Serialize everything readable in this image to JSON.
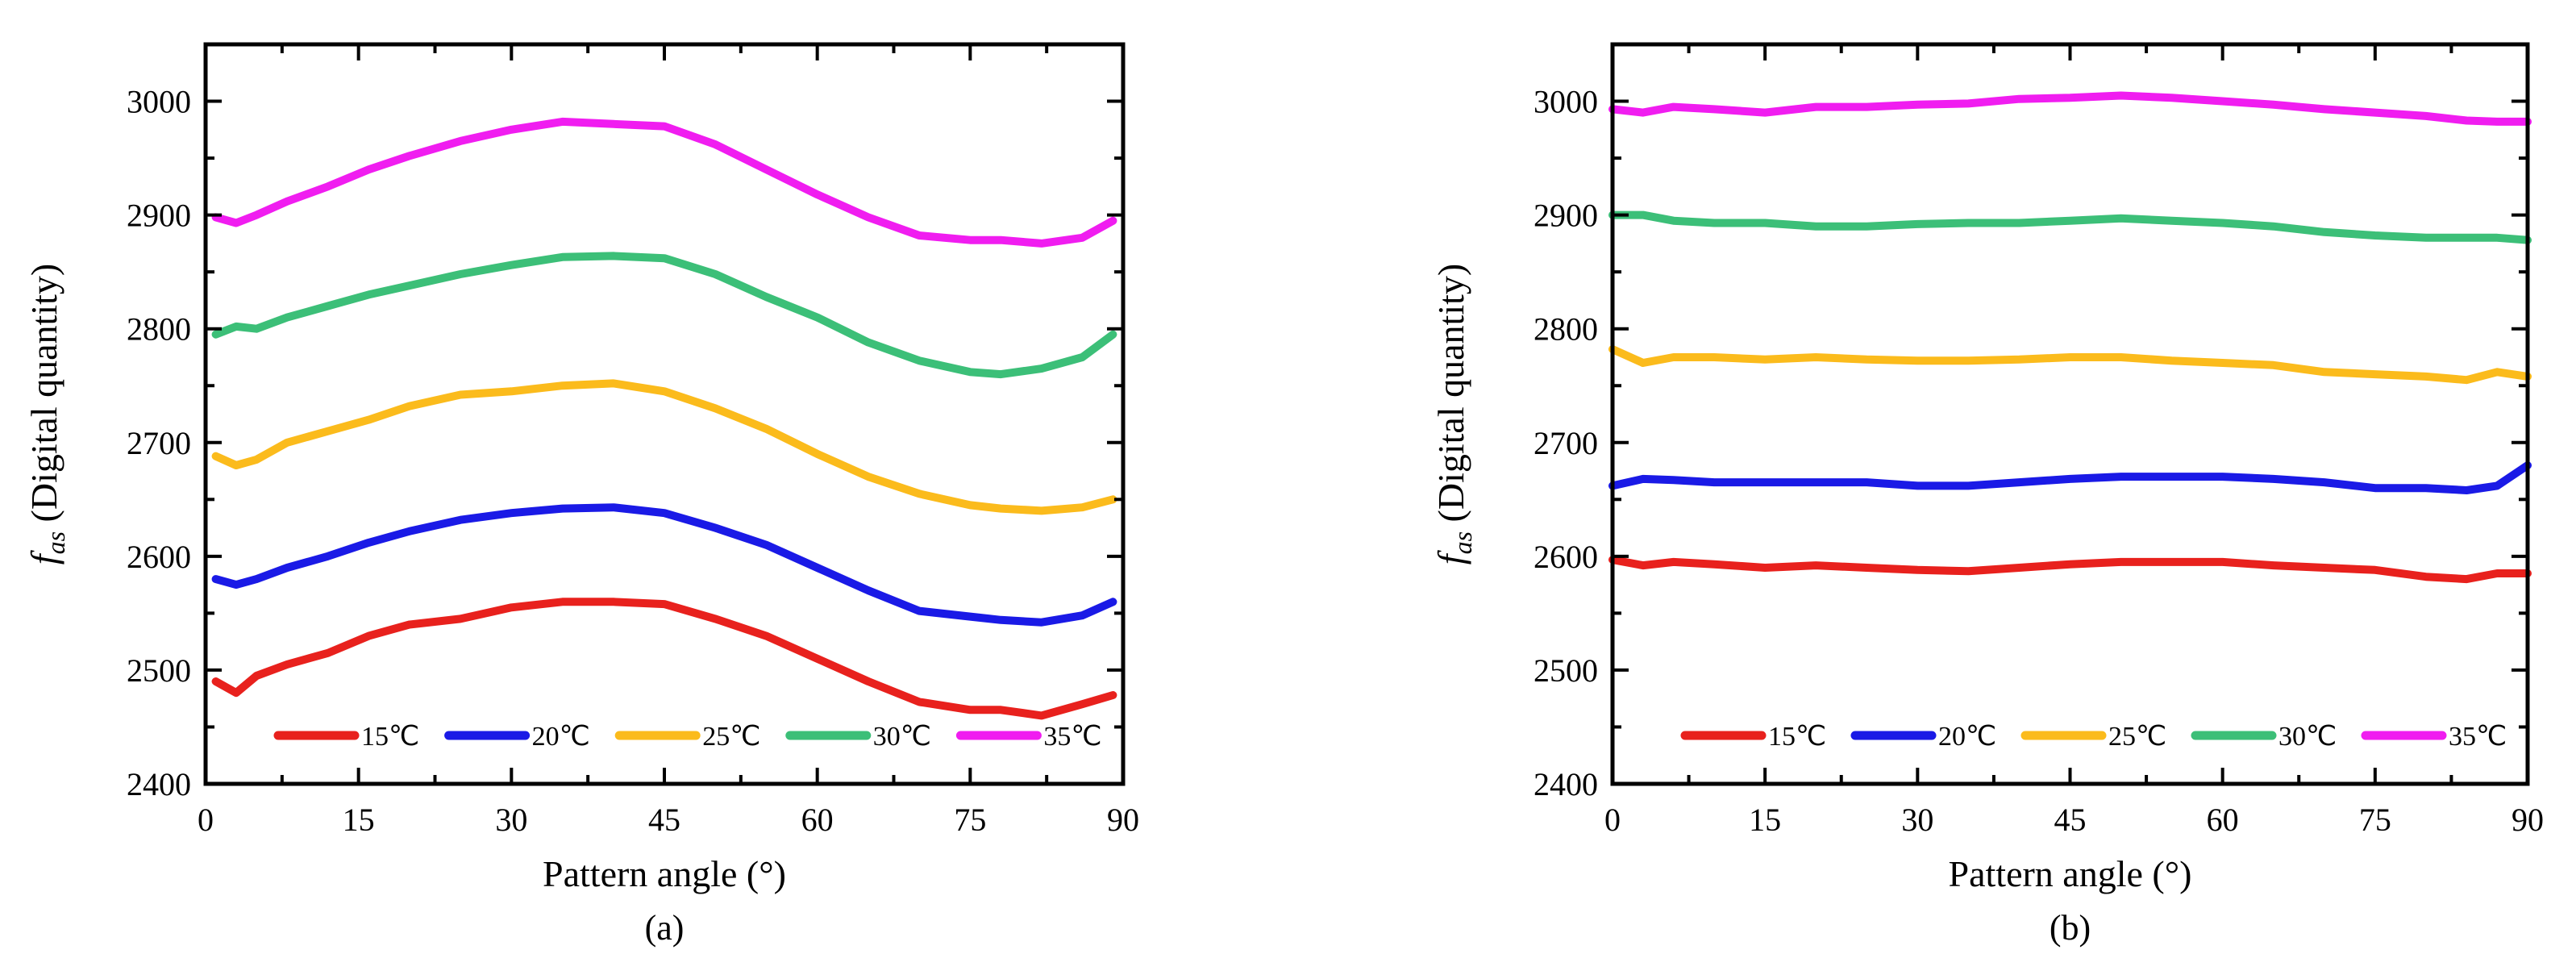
{
  "colors": {
    "15C": "#e8211d",
    "20C": "#1a1ae6",
    "25C": "#fbbb1c",
    "30C": "#3cbf78",
    "35C": "#f01df0"
  },
  "chart_data": [
    {
      "type": "line",
      "caption": "(a)",
      "xlabel": "Pattern angle (°)",
      "ylabel_symbol": "f",
      "ylabel_sub": "as",
      "ylabel_rest": " (Digital quantity)",
      "xlim": [
        0,
        90
      ],
      "ylim": [
        2400,
        3050
      ],
      "xticks": [
        0,
        15,
        30,
        45,
        60,
        75,
        90
      ],
      "yticks": [
        2400,
        2500,
        2600,
        2700,
        2800,
        2900,
        3000
      ],
      "x": [
        1,
        3,
        5,
        8,
        12,
        16,
        20,
        25,
        30,
        35,
        40,
        45,
        50,
        55,
        60,
        65,
        70,
        75,
        78,
        82,
        86,
        89
      ],
      "series": [
        {
          "name": "15℃",
          "color_key": "15C",
          "values": [
            2490,
            2480,
            2495,
            2505,
            2515,
            2530,
            2540,
            2545,
            2555,
            2560,
            2560,
            2558,
            2545,
            2530,
            2510,
            2490,
            2472,
            2465,
            2465,
            2460,
            2470,
            2478
          ]
        },
        {
          "name": "20℃",
          "color_key": "20C",
          "values": [
            2580,
            2575,
            2580,
            2590,
            2600,
            2612,
            2622,
            2632,
            2638,
            2642,
            2643,
            2638,
            2625,
            2610,
            2590,
            2570,
            2552,
            2547,
            2544,
            2542,
            2548,
            2560
          ]
        },
        {
          "name": "25℃",
          "color_key": "25C",
          "values": [
            2688,
            2680,
            2685,
            2700,
            2710,
            2720,
            2732,
            2742,
            2745,
            2750,
            2752,
            2745,
            2730,
            2712,
            2690,
            2670,
            2655,
            2645,
            2642,
            2640,
            2643,
            2650
          ]
        },
        {
          "name": "30℃",
          "color_key": "30C",
          "values": [
            2795,
            2802,
            2800,
            2810,
            2820,
            2830,
            2838,
            2848,
            2856,
            2863,
            2864,
            2862,
            2848,
            2828,
            2810,
            2788,
            2772,
            2762,
            2760,
            2765,
            2775,
            2795
          ]
        },
        {
          "name": "35℃",
          "color_key": "35C",
          "values": [
            2898,
            2893,
            2900,
            2912,
            2925,
            2940,
            2952,
            2965,
            2975,
            2982,
            2980,
            2978,
            2962,
            2940,
            2918,
            2898,
            2882,
            2878,
            2878,
            2875,
            2880,
            2895
          ]
        }
      ]
    },
    {
      "type": "line",
      "caption": "(b)",
      "xlabel": "Pattern angle (°)",
      "ylabel_symbol": "f",
      "ylabel_sub": "as",
      "ylabel_rest": " (Digital quantity)",
      "xlim": [
        0,
        90
      ],
      "ylim": [
        2400,
        3050
      ],
      "xticks": [
        0,
        15,
        30,
        45,
        60,
        75,
        90
      ],
      "yticks": [
        2400,
        2500,
        2600,
        2700,
        2800,
        2900,
        3000
      ],
      "x": [
        0,
        3,
        6,
        10,
        15,
        20,
        25,
        30,
        35,
        40,
        45,
        50,
        55,
        60,
        65,
        70,
        75,
        80,
        84,
        87,
        90
      ],
      "series": [
        {
          "name": "15℃",
          "color_key": "15C",
          "values": [
            2597,
            2592,
            2595,
            2593,
            2590,
            2592,
            2590,
            2588,
            2587,
            2590,
            2593,
            2595,
            2595,
            2595,
            2592,
            2590,
            2588,
            2582,
            2580,
            2585,
            2585
          ]
        },
        {
          "name": "20℃",
          "color_key": "20C",
          "values": [
            2662,
            2668,
            2667,
            2665,
            2665,
            2665,
            2665,
            2662,
            2662,
            2665,
            2668,
            2670,
            2670,
            2670,
            2668,
            2665,
            2660,
            2660,
            2658,
            2662,
            2680
          ]
        },
        {
          "name": "25℃",
          "color_key": "25C",
          "values": [
            2782,
            2770,
            2775,
            2775,
            2773,
            2775,
            2773,
            2772,
            2772,
            2773,
            2775,
            2775,
            2772,
            2770,
            2768,
            2762,
            2760,
            2758,
            2755,
            2762,
            2758
          ]
        },
        {
          "name": "30℃",
          "color_key": "30C",
          "values": [
            2900,
            2900,
            2895,
            2893,
            2893,
            2890,
            2890,
            2892,
            2893,
            2893,
            2895,
            2897,
            2895,
            2893,
            2890,
            2885,
            2882,
            2880,
            2880,
            2880,
            2878
          ]
        },
        {
          "name": "35℃",
          "color_key": "35C",
          "values": [
            2993,
            2990,
            2995,
            2993,
            2990,
            2995,
            2995,
            2997,
            2998,
            3002,
            3003,
            3005,
            3003,
            3000,
            2997,
            2993,
            2990,
            2987,
            2983,
            2982,
            2982
          ]
        }
      ]
    }
  ]
}
